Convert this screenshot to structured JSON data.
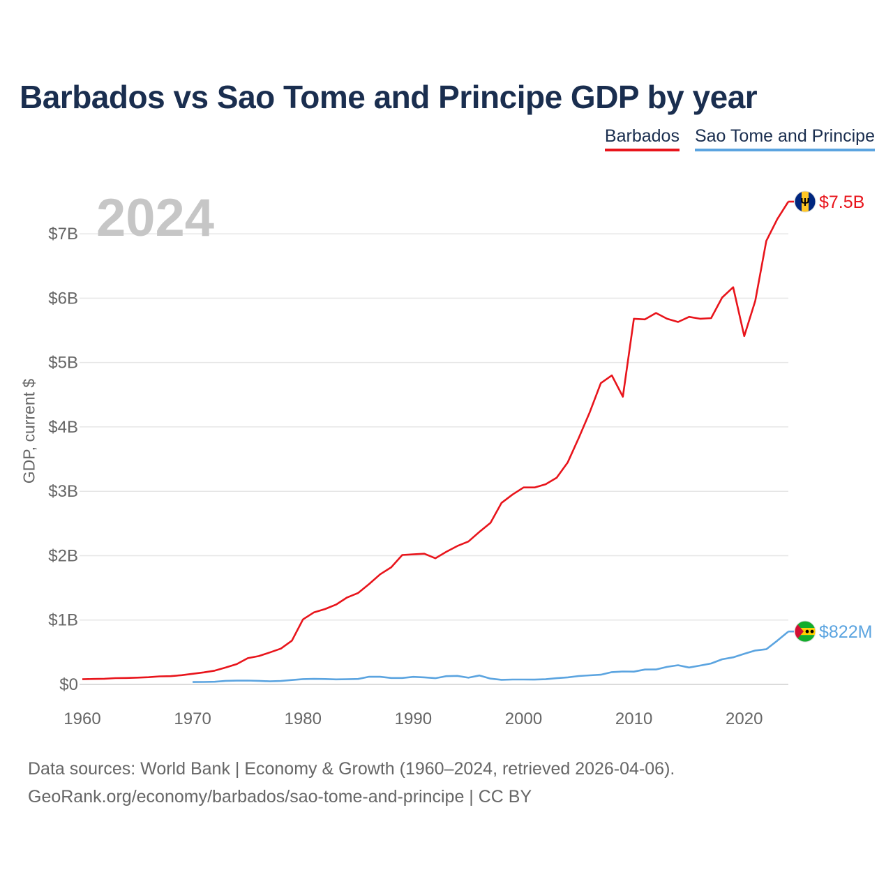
{
  "chart_data": {
    "type": "line",
    "title": "Barbados vs Sao Tome and Principe GDP by year",
    "ylabel": "GDP, current $",
    "xlabel": "",
    "year_label": "2024",
    "xlim": [
      1960,
      2024
    ],
    "ylim": [
      0,
      7500000000
    ],
    "x_ticks": [
      1960,
      1970,
      1980,
      1990,
      2000,
      2010,
      2020
    ],
    "y_ticks": [
      {
        "value": 0,
        "label": "$0"
      },
      {
        "value": 1000000000,
        "label": "$1B"
      },
      {
        "value": 2000000000,
        "label": "$2B"
      },
      {
        "value": 3000000000,
        "label": "$3B"
      },
      {
        "value": 4000000000,
        "label": "$4B"
      },
      {
        "value": 5000000000,
        "label": "$5B"
      },
      {
        "value": 6000000000,
        "label": "$6B"
      },
      {
        "value": 7000000000,
        "label": "$7B"
      }
    ],
    "grid": true,
    "legend_position": "top-right",
    "series": [
      {
        "name": "Barbados",
        "color": "#e8141b",
        "end_label": "$7.5B",
        "flag_icon": "barbados-flag-icon",
        "x": [
          1960,
          1961,
          1962,
          1963,
          1964,
          1965,
          1966,
          1967,
          1968,
          1969,
          1970,
          1971,
          1972,
          1973,
          1974,
          1975,
          1976,
          1977,
          1978,
          1979,
          1980,
          1981,
          1982,
          1983,
          1984,
          1985,
          1986,
          1987,
          1988,
          1989,
          1990,
          1991,
          1992,
          1993,
          1994,
          1995,
          1996,
          1997,
          1998,
          1999,
          2000,
          2001,
          2002,
          2003,
          2004,
          2005,
          2006,
          2007,
          2008,
          2009,
          2010,
          2011,
          2012,
          2013,
          2014,
          2015,
          2016,
          2017,
          2018,
          2019,
          2020,
          2021,
          2022,
          2023,
          2024
        ],
        "values": [
          80000000,
          85000000,
          88000000,
          98000000,
          100000000,
          105000000,
          112000000,
          125000000,
          128000000,
          143000000,
          165000000,
          186000000,
          213000000,
          262000000,
          315000000,
          408000000,
          440000000,
          496000000,
          556000000,
          680000000,
          1010000000,
          1120000000,
          1170000000,
          1240000000,
          1350000000,
          1420000000,
          1560000000,
          1710000000,
          1820000000,
          2010000000,
          2020000000,
          2030000000,
          1960000000,
          2060000000,
          2150000000,
          2220000000,
          2370000000,
          2510000000,
          2820000000,
          2950000000,
          3060000000,
          3060000000,
          3110000000,
          3210000000,
          3450000000,
          3830000000,
          4230000000,
          4680000000,
          4800000000,
          4470000000,
          5680000000,
          5670000000,
          5770000000,
          5680000000,
          5630000000,
          5710000000,
          5680000000,
          5690000000,
          6010000000,
          6170000000,
          5410000000,
          5960000000,
          6890000000,
          7230000000,
          7500000000
        ]
      },
      {
        "name": "Sao Tome and Principe",
        "color": "#5ba4e0",
        "end_label": "$822M",
        "flag_icon": "sao-tome-flag-icon",
        "x": [
          1970,
          1971,
          1972,
          1973,
          1974,
          1975,
          1976,
          1977,
          1978,
          1979,
          1980,
          1981,
          1982,
          1983,
          1984,
          1985,
          1986,
          1987,
          1988,
          1989,
          1990,
          1991,
          1992,
          1993,
          1994,
          1995,
          1996,
          1997,
          1998,
          1999,
          2000,
          2001,
          2002,
          2003,
          2004,
          2005,
          2006,
          2007,
          2008,
          2009,
          2010,
          2011,
          2012,
          2013,
          2014,
          2015,
          2016,
          2017,
          2018,
          2019,
          2020,
          2021,
          2022,
          2023,
          2024
        ],
        "values": [
          37000000,
          38000000,
          41000000,
          55000000,
          58000000,
          60000000,
          55000000,
          48000000,
          53000000,
          68000000,
          82000000,
          86000000,
          83000000,
          78000000,
          80000000,
          85000000,
          119000000,
          118000000,
          100000000,
          100000000,
          117000000,
          109000000,
          97000000,
          128000000,
          132000000,
          104000000,
          139000000,
          90000000,
          72000000,
          76000000,
          76000000,
          75000000,
          80000000,
          97000000,
          110000000,
          130000000,
          141000000,
          151000000,
          191000000,
          201000000,
          198000000,
          231000000,
          232000000,
          272000000,
          298000000,
          262000000,
          293000000,
          325000000,
          390000000,
          420000000,
          476000000,
          527000000,
          546000000,
          680000000,
          822000000
        ]
      }
    ]
  },
  "header": {
    "title": "Barbados vs Sao Tome and Principe GDP by year"
  },
  "legend": {
    "items": [
      {
        "label": "Barbados",
        "color": "#e8141b"
      },
      {
        "label": "Sao Tome and Principe",
        "color": "#5ba4e0"
      }
    ]
  },
  "footer": {
    "sources_line1": "Data sources: World Bank | Economy & Growth (1960–2024, retrieved 2026-04-06).",
    "sources_line2": "GeoRank.org/economy/barbados/sao-tome-and-principe | CC BY"
  }
}
